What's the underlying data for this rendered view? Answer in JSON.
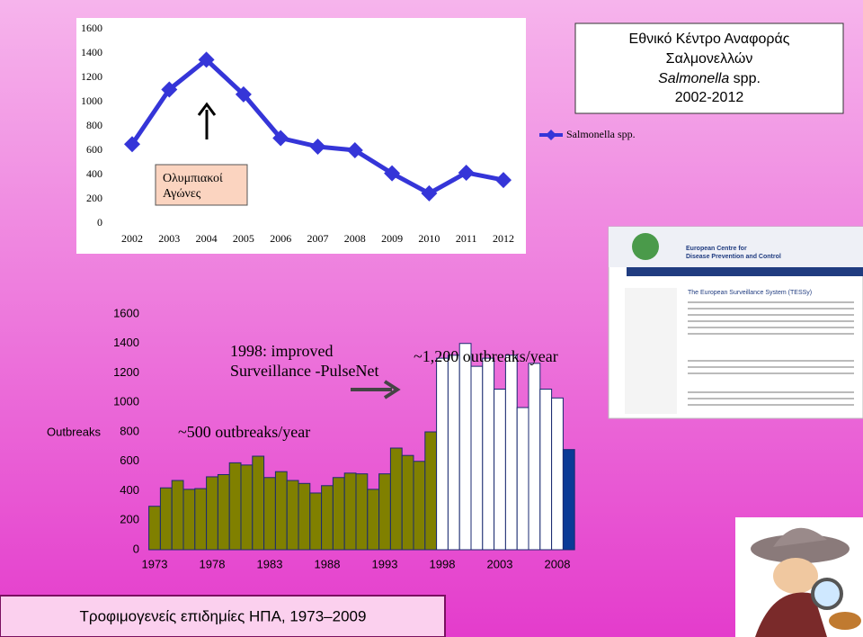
{
  "chart_data": [
    {
      "type": "line",
      "title_lines": [
        "Εθνικό Κέντρο Αναφοράς",
        "Σαλμονελλών"
      ],
      "title_italic": "Salmonella",
      "title_suffix": "spp.",
      "subtitle": "2002-2012",
      "categories": [
        "2002",
        "2003",
        "2004",
        "2005",
        "2006",
        "2007",
        "2008",
        "2009",
        "2010",
        "2011",
        "2012"
      ],
      "series": [
        {
          "name": "Salmonella spp.",
          "color": "#3535d8",
          "values": [
            650,
            1100,
            1345,
            1060,
            700,
            630,
            600,
            410,
            245,
            415,
            355
          ]
        }
      ],
      "ylim": [
        0,
        1600
      ],
      "yticks": [
        0,
        200,
        400,
        600,
        800,
        1000,
        1200,
        1400,
        1600
      ],
      "annotations": [
        "Ολυμπιακοί",
        "Αγώνες"
      ]
    },
    {
      "type": "bar",
      "title": "Τροφιμογενείς επιδημίες ΗΠΑ, 1973–2009",
      "ylabel": "Outbreaks",
      "categories": [
        "1973",
        null,
        null,
        null,
        null,
        "1978",
        null,
        null,
        null,
        null,
        "1983",
        null,
        null,
        null,
        null,
        "1988",
        null,
        null,
        null,
        null,
        "1993",
        null,
        null,
        null,
        null,
        "1998",
        null,
        null,
        null,
        null,
        "2003",
        null,
        null,
        null,
        null,
        "2008",
        null
      ],
      "values": [
        295,
        420,
        470,
        410,
        415,
        495,
        510,
        590,
        575,
        635,
        490,
        530,
        470,
        450,
        385,
        435,
        490,
        520,
        515,
        410,
        515,
        690,
        640,
        600,
        800,
        1300,
        1320,
        1400,
        1245,
        1300,
        1090,
        1320,
        965,
        1265,
        1090,
        1030,
        680
      ],
      "bar_colors": [
        "#808000",
        "#808000",
        "#808000",
        "#808000",
        "#808000",
        "#808000",
        "#808000",
        "#808000",
        "#808000",
        "#808000",
        "#808000",
        "#808000",
        "#808000",
        "#808000",
        "#808000",
        "#808000",
        "#808000",
        "#808000",
        "#808000",
        "#808000",
        "#808000",
        "#808000",
        "#808000",
        "#808000",
        "#808000",
        "#ffffff",
        "#ffffff",
        "#ffffff",
        "#ffffff",
        "#ffffff",
        "#ffffff",
        "#ffffff",
        "#ffffff",
        "#ffffff",
        "#ffffff",
        "#ffffff",
        "#0b3a96"
      ],
      "ylim": [
        0,
        1600
      ],
      "yticks": [
        0,
        200,
        400,
        600,
        800,
        1000,
        1200,
        1400,
        1600
      ],
      "annotations": {
        "surveillance": [
          "1998: improved",
          "Surveillance -PulseNet"
        ],
        "late": "~1,200 outbreaks/year",
        "early": "~500 outbreaks/year"
      }
    }
  ],
  "screenshot": {
    "org_name": [
      "European Centre for",
      "Disease Prevention and Control"
    ],
    "page_title": "The European Surveillance System (TESSy)"
  }
}
